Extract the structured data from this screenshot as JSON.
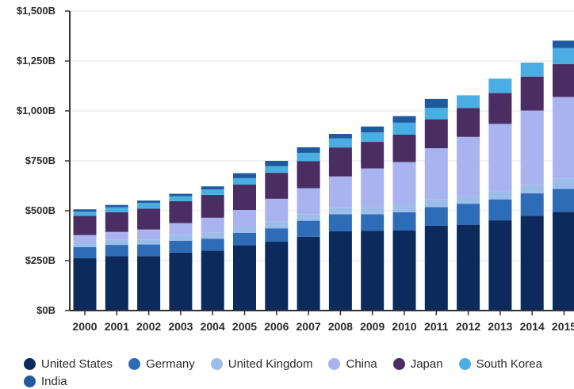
{
  "chart_data": {
    "type": "bar",
    "stacked": true,
    "categories": [
      "2000",
      "2001",
      "2002",
      "2003",
      "2004",
      "2005",
      "2006",
      "2007",
      "2008",
      "2009",
      "2010",
      "2011",
      "2012",
      "2013",
      "2014",
      "2015"
    ],
    "yticks": [
      {
        "value": 0,
        "label": "$0B"
      },
      {
        "value": 250,
        "label": "$250B"
      },
      {
        "value": 500,
        "label": "$500B"
      },
      {
        "value": 750,
        "label": "$750B"
      },
      {
        "value": 1000,
        "label": "$1,000B"
      },
      {
        "value": 1250,
        "label": "$1,250B"
      },
      {
        "value": 1500,
        "label": "$1,500B"
      }
    ],
    "ylim": [
      0,
      1500
    ],
    "grid": true,
    "legend_position": "bottom",
    "series": [
      {
        "name": "United States",
        "color": "#0d2a5c",
        "values": [
          263,
          272,
          273,
          290,
          300,
          327,
          345,
          370,
          397,
          400,
          402,
          425,
          430,
          452,
          475,
          495
        ]
      },
      {
        "name": "Germany",
        "color": "#2f6cb8",
        "values": [
          55,
          57,
          58,
          60,
          60,
          62,
          67,
          80,
          85,
          82,
          90,
          93,
          105,
          105,
          112,
          115
        ]
      },
      {
        "name": "United Kingdom",
        "color": "#9cbde9",
        "values": [
          25,
          25,
          25,
          28,
          30,
          30,
          33,
          33,
          35,
          40,
          40,
          40,
          40,
          40,
          43,
          50
        ]
      },
      {
        "name": "China",
        "color": "#a8b3ef",
        "values": [
          35,
          40,
          50,
          60,
          75,
          85,
          115,
          130,
          155,
          190,
          212,
          255,
          295,
          338,
          372,
          410
        ]
      },
      {
        "name": "Japan",
        "color": "#4a2e63",
        "values": [
          97,
          98,
          105,
          110,
          115,
          127,
          130,
          135,
          145,
          133,
          137,
          145,
          145,
          155,
          170,
          165
        ]
      },
      {
        "name": "South Korea",
        "color": "#4aaee3",
        "values": [
          20,
          25,
          28,
          25,
          27,
          32,
          33,
          42,
          45,
          47,
          60,
          57,
          63,
          72,
          70,
          80
        ]
      },
      {
        "name": "India",
        "color": "#1f5a9e",
        "values": [
          12,
          12,
          12,
          12,
          15,
          25,
          27,
          28,
          23,
          30,
          33,
          45,
          0,
          0,
          0,
          37
        ]
      }
    ]
  }
}
